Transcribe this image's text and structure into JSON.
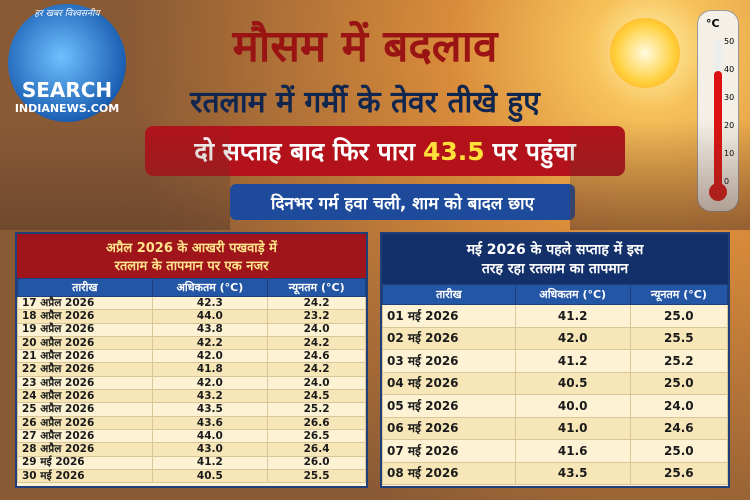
{
  "logo": {
    "tagline": "हर खबर विश्वसनीय",
    "search": "SEARCH",
    "site": "INDIANEWS.COM"
  },
  "header": {
    "title": "मौसम में बदलाव",
    "subtitle": "रतलाम में गर्मी के तेवर तीखे हुए",
    "highlight": [
      "दो सप्ताह बाद फिर पारा",
      "43.5",
      "पर पहुंचा"
    ],
    "subline": "दिनभर गर्म हवा चली, शाम को बादल छाए"
  },
  "thermometer": {
    "unit": "°C",
    "ticks": [
      "50",
      "40",
      "30",
      "20",
      "10",
      "0"
    ]
  },
  "tables": [
    {
      "title": [
        "अप्रैल 2026 के आखरी पखवाड़े में",
        "रतलाम के तापमान पर एक नजर"
      ],
      "columns": [
        "तारीख",
        "अधिकतम (°C)",
        "न्यूनतम (°C)"
      ],
      "rows": [
        [
          "17 अप्रैल 2026",
          "42.3",
          "24.2"
        ],
        [
          "18 अप्रैल 2026",
          "44.0",
          "23.2"
        ],
        [
          "19 अप्रैल 2026",
          "43.8",
          "24.0"
        ],
        [
          "20 अप्रैल 2026",
          "42.2",
          "24.2"
        ],
        [
          "21 अप्रैल 2026",
          "42.0",
          "24.6"
        ],
        [
          "22 अप्रैल 2026",
          "41.8",
          "24.2"
        ],
        [
          "23 अप्रैल 2026",
          "42.0",
          "24.0"
        ],
        [
          "24 अप्रैल 2026",
          "43.2",
          "24.5"
        ],
        [
          "25 अप्रैल 2026",
          "43.5",
          "25.2"
        ],
        [
          "26 अप्रैल 2026",
          "43.6",
          "26.6"
        ],
        [
          "27 अप्रैल 2026",
          "44.0",
          "26.5"
        ],
        [
          "28 अप्रैल 2026",
          "43.0",
          "26.4"
        ],
        [
          "29 मई 2026",
          "41.2",
          "26.0"
        ],
        [
          "30 मई 2026",
          "40.5",
          "25.5"
        ]
      ]
    },
    {
      "title": [
        "मई 2026 के पहले सप्ताह में इस",
        "तरह रहा रतलाम का तापमान"
      ],
      "columns": [
        "तारीख",
        "अधिकतम (°C)",
        "न्यूनतम (°C)"
      ],
      "rows": [
        [
          "01 मई 2026",
          "41.2",
          "25.0"
        ],
        [
          "02 मई 2026",
          "42.0",
          "25.5"
        ],
        [
          "03 मई 2026",
          "41.2",
          "25.2"
        ],
        [
          "04 मई 2026",
          "40.5",
          "25.0"
        ],
        [
          "05 मई 2026",
          "40.0",
          "24.0"
        ],
        [
          "06 मई 2026",
          "41.0",
          "24.6"
        ],
        [
          "07 मई 2026",
          "41.6",
          "25.0"
        ],
        [
          "08 मई 2026",
          "43.5",
          "25.6"
        ]
      ]
    }
  ]
}
